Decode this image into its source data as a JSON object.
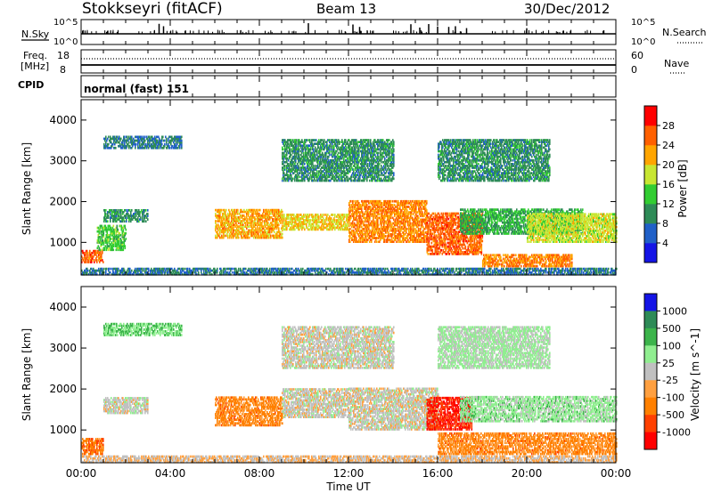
{
  "header": {
    "station": "Stokkseyri (fitACF)",
    "beam": "Beam 13",
    "date": "30/Dec/2012"
  },
  "noise_panel": {
    "left_label": "N.Sky",
    "right_label": "N.Search",
    "left_ticks": [
      "10^5",
      "10^0"
    ],
    "right_ticks": [
      "10^5",
      "10^0"
    ],
    "spikes_x_hours": [
      3.5,
      3.7,
      10.2,
      12.2,
      12.5,
      14.8,
      15.2,
      15.6,
      16.0,
      16.5,
      16.8,
      17.3,
      20.0
    ]
  },
  "freq_panel": {
    "left_label_1": "Freq.",
    "left_label_2": "[MHz]",
    "right_label": "Nave",
    "left_ticks": [
      "18",
      "8"
    ],
    "right_ticks": [
      "60",
      "0"
    ]
  },
  "cpid": {
    "label": "CPID",
    "mode": "normal (fast) 151"
  },
  "chart_data": [
    {
      "type": "heatmap",
      "name": "power",
      "ylabel": "Slant Range [km]",
      "xlim": [
        0,
        24
      ],
      "ylim": [
        200,
        4500
      ],
      "yticks": [
        "1000",
        "2000",
        "3000",
        "4000"
      ],
      "colorbar": {
        "label": "Power [dB]",
        "ticks": [
          "4",
          "8",
          "12",
          "16",
          "20",
          "24",
          "28"
        ],
        "colors": [
          "#1414e6",
          "#2060c8",
          "#2e8b57",
          "#32cd32",
          "#c8e632",
          "#ffa500",
          "#ff6000",
          "#ff0000"
        ],
        "range": [
          0,
          32
        ]
      },
      "regions": [
        {
          "t0": 0,
          "t1": 1.0,
          "r0": 500,
          "r1": 800,
          "value": 26
        },
        {
          "t0": 0.7,
          "t1": 2.0,
          "r0": 800,
          "r1": 1400,
          "value": 14
        },
        {
          "t0": 1.0,
          "t1": 3.0,
          "r0": 1500,
          "r1": 1800,
          "value": 10
        },
        {
          "t0": 1.0,
          "t1": 4.5,
          "r0": 3300,
          "r1": 3600,
          "value": 8
        },
        {
          "t0": 6.0,
          "t1": 9.0,
          "r0": 1100,
          "r1": 1800,
          "value": 22
        },
        {
          "t0": 9.0,
          "t1": 12.0,
          "r0": 1300,
          "r1": 1700,
          "value": 20
        },
        {
          "t0": 12.0,
          "t1": 15.5,
          "r0": 1000,
          "r1": 2000,
          "value": 24
        },
        {
          "t0": 15.5,
          "t1": 18.0,
          "r0": 700,
          "r1": 1700,
          "value": 26
        },
        {
          "t0": 18.0,
          "t1": 22.0,
          "r0": 400,
          "r1": 700,
          "value": 24
        },
        {
          "t0": 17.0,
          "t1": 22.5,
          "r0": 1200,
          "r1": 1800,
          "value": 12
        },
        {
          "t0": 20.0,
          "t1": 24.0,
          "r0": 1000,
          "r1": 1700,
          "value": 18
        },
        {
          "t0": 9.0,
          "t1": 14.0,
          "r0": 2500,
          "r1": 3500,
          "value": 10
        },
        {
          "t0": 16.0,
          "t1": 21.0,
          "r0": 2500,
          "r1": 3500,
          "value": 10
        },
        {
          "t0": 0,
          "t1": 24.0,
          "r0": 200,
          "r1": 350,
          "value": 8
        }
      ]
    },
    {
      "type": "heatmap",
      "name": "velocity",
      "ylabel": "Slant Range [km]",
      "xlabel": "Time UT",
      "xlim": [
        0,
        24
      ],
      "ylim": [
        200,
        4500
      ],
      "xticks": [
        "00:00",
        "04:00",
        "08:00",
        "12:00",
        "16:00",
        "20:00",
        "00:00"
      ],
      "yticks": [
        "1000",
        "2000",
        "3000",
        "4000"
      ],
      "colorbar": {
        "label": "Velocity [m s^-1]",
        "ticks": [
          "1000",
          "500",
          "100",
          "25",
          "-25",
          "-100",
          "-500",
          "-1000"
        ],
        "colors": [
          "#1414e6",
          "#2e8b57",
          "#3cb44b",
          "#90ee90",
          "#c0c0c0",
          "#ffa040",
          "#ff8000",
          "#ff4000",
          "#ff0000"
        ],
        "range": [
          -1000,
          1000
        ]
      },
      "regions": [
        {
          "t0": 0,
          "t1": 1.0,
          "r0": 400,
          "r1": 800,
          "value": -500
        },
        {
          "t0": 1.0,
          "t1": 3.0,
          "r0": 1400,
          "r1": 1800,
          "value": 0
        },
        {
          "t0": 1.0,
          "t1": 4.5,
          "r0": 3300,
          "r1": 3600,
          "value": 300
        },
        {
          "t0": 6.0,
          "t1": 9.0,
          "r0": 1100,
          "r1": 1800,
          "value": -400
        },
        {
          "t0": 9.0,
          "t1": 12.0,
          "r0": 1300,
          "r1": 2000,
          "value": 0
        },
        {
          "t0": 12.0,
          "t1": 16.0,
          "r0": 1000,
          "r1": 2000,
          "value": -10
        },
        {
          "t0": 15.5,
          "t1": 17.5,
          "r0": 1000,
          "r1": 1800,
          "value": -800
        },
        {
          "t0": 16.0,
          "t1": 24.0,
          "r0": 400,
          "r1": 900,
          "value": -400
        },
        {
          "t0": 17.0,
          "t1": 24.0,
          "r0": 1200,
          "r1": 1800,
          "value": 200
        },
        {
          "t0": 9.0,
          "t1": 14.0,
          "r0": 2500,
          "r1": 3500,
          "value": 0
        },
        {
          "t0": 16.0,
          "t1": 21.0,
          "r0": 2500,
          "r1": 3500,
          "value": 150
        },
        {
          "t0": 0,
          "t1": 24.0,
          "r0": 200,
          "r1": 350,
          "value": -100
        }
      ]
    }
  ]
}
